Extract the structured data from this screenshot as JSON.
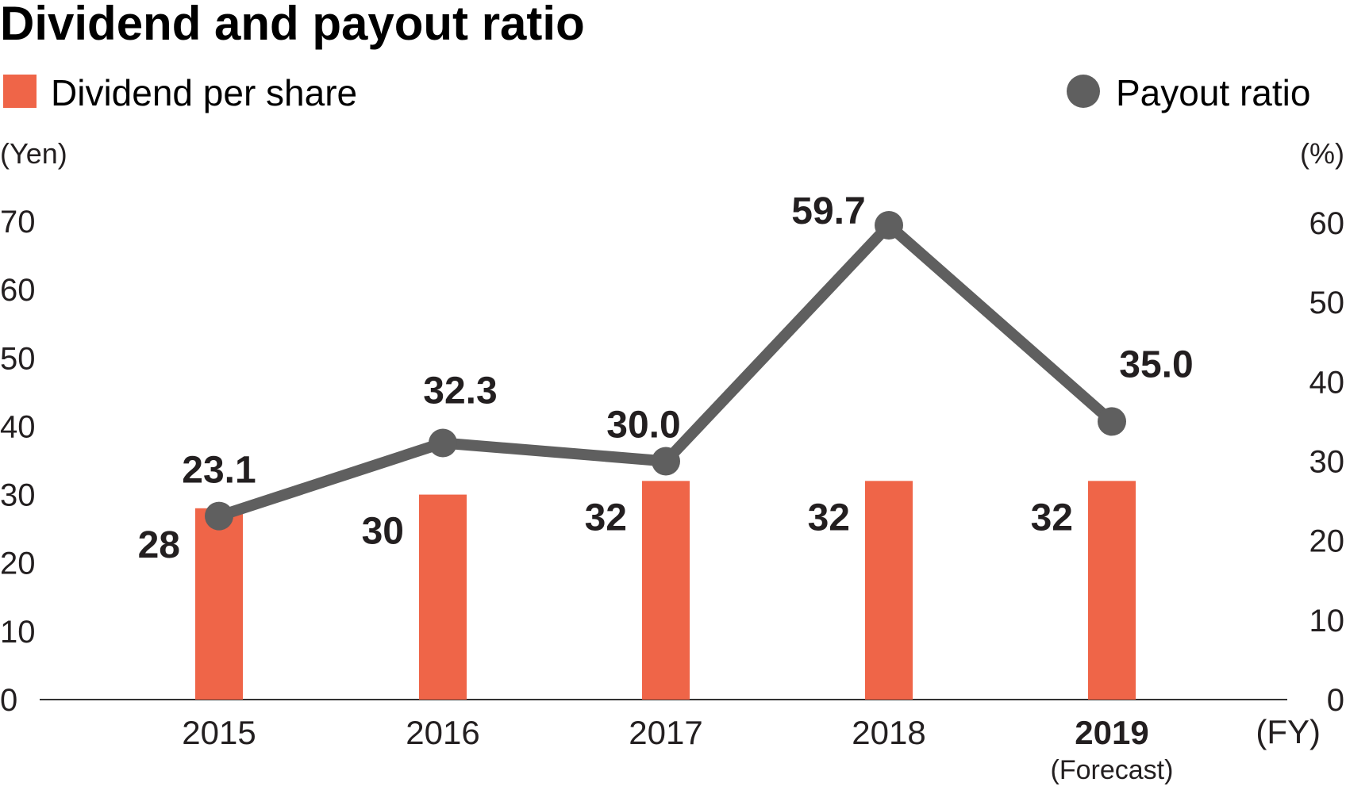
{
  "chart_data": {
    "type": "bar",
    "title": "Dividend and payout ratio",
    "categories": [
      "2015",
      "2016",
      "2017",
      "2018",
      "2019"
    ],
    "category_notes": [
      "",
      "",
      "",
      "",
      "(Forecast)"
    ],
    "x_unit": "(FY)",
    "left_axis": {
      "unit": "(Yen)",
      "range": [
        0,
        70
      ],
      "ticks": [
        0,
        10,
        20,
        30,
        40,
        50,
        60,
        70
      ]
    },
    "right_axis": {
      "unit": "(%)",
      "range": [
        0,
        60
      ],
      "ticks": [
        0,
        10,
        20,
        30,
        40,
        50,
        60
      ]
    },
    "series": [
      {
        "name": "Dividend per share",
        "type": "bar",
        "axis": "left",
        "color": "#ef6548",
        "values": [
          28,
          30,
          32,
          32,
          32
        ],
        "labels": [
          "28",
          "30",
          "32",
          "32",
          "32"
        ]
      },
      {
        "name": "Payout ratio",
        "type": "line",
        "axis": "right",
        "color": "#5f5f5f",
        "values": [
          23.1,
          32.3,
          30.0,
          59.7,
          35.0
        ],
        "labels": [
          "23.1",
          "32.3",
          "30.0",
          "59.7",
          "35.0"
        ]
      }
    ],
    "grid": false,
    "legend": "top"
  }
}
